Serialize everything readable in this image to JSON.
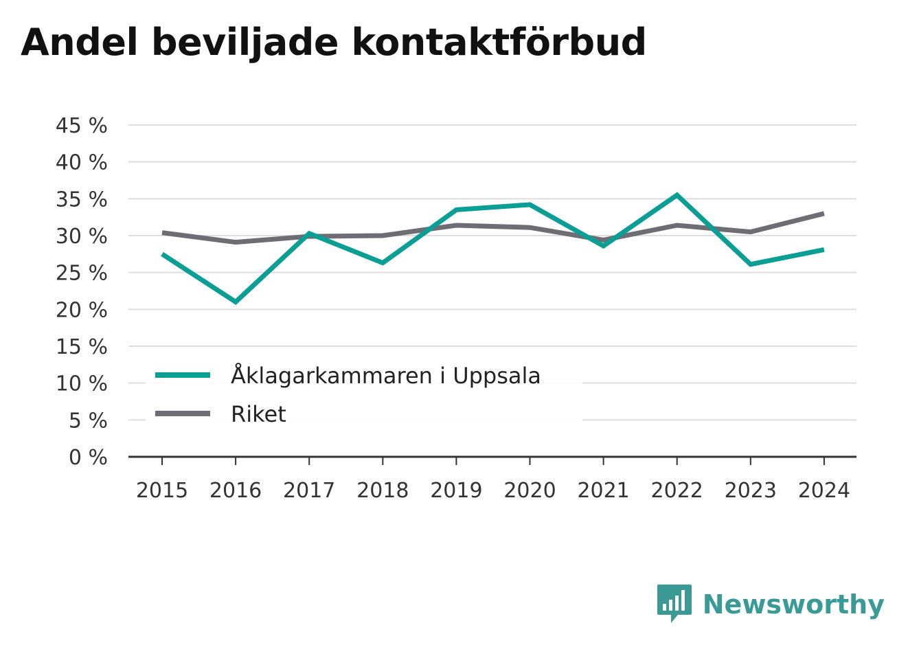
{
  "brand": {
    "name": "Newsworthy"
  },
  "chart_data": {
    "type": "line",
    "title": "Andel beviljade kontaktförbud",
    "xlabel": "",
    "ylabel": "",
    "categories": [
      "2015",
      "2016",
      "2017",
      "2018",
      "2019",
      "2020",
      "2021",
      "2022",
      "2023",
      "2024"
    ],
    "ylim": [
      0,
      45
    ],
    "yticks": [
      0,
      5,
      10,
      15,
      20,
      25,
      30,
      35,
      40,
      45
    ],
    "ytick_labels": [
      "0 %",
      "5 %",
      "10 %",
      "15 %",
      "20 %",
      "25 %",
      "30 %",
      "35 %",
      "40 %",
      "45 %"
    ],
    "grid": true,
    "legend_position": "bottom-left",
    "series": [
      {
        "name": "Åklagarkammaren i Uppsala",
        "color": "#0a9e95",
        "values": [
          27.5,
          21.0,
          30.3,
          26.3,
          33.5,
          34.2,
          28.6,
          35.5,
          26.1,
          28.1
        ]
      },
      {
        "name": "Riket",
        "color": "#6e6d73",
        "values": [
          30.4,
          29.1,
          29.9,
          30.0,
          31.4,
          31.1,
          29.4,
          31.4,
          30.5,
          33.0
        ]
      }
    ]
  }
}
